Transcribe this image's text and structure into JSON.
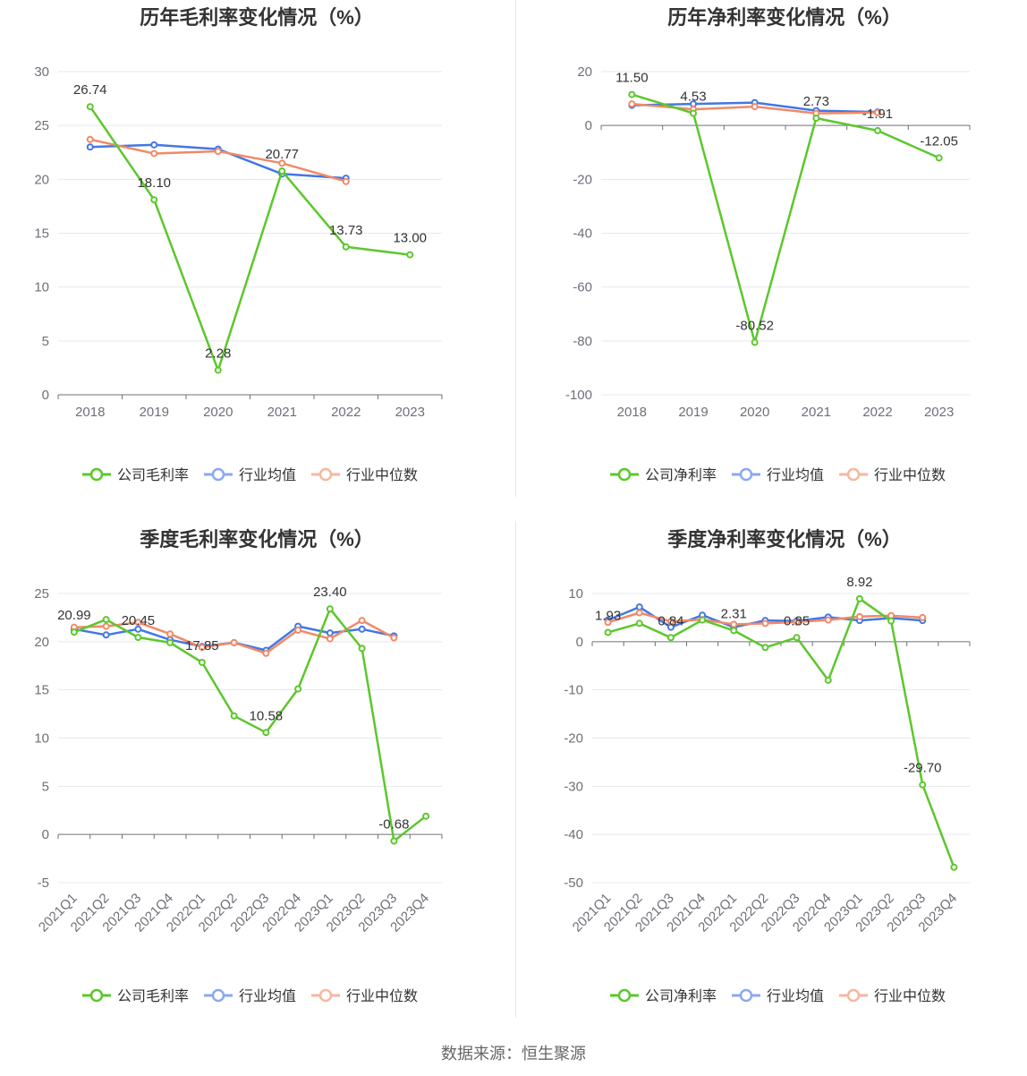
{
  "source": "数据来源：恒生聚源",
  "colors": {
    "company": "#5cc72c",
    "avg": "#4277e5",
    "median": "#f08a68",
    "avg_legend": "#8ba9ee",
    "median_legend": "#f7b6a0"
  },
  "chart_data": [
    {
      "id": "annual-gross",
      "type": "line",
      "title": "历年毛利率变化情况（%）",
      "categories": [
        "2018",
        "2019",
        "2020",
        "2021",
        "2022",
        "2023"
      ],
      "ylim": [
        0,
        30
      ],
      "yticks": [
        0,
        5,
        10,
        15,
        20,
        25,
        30
      ],
      "legend": [
        "公司毛利率",
        "行业均值",
        "行业中位数"
      ],
      "series": [
        {
          "name": "公司毛利率",
          "values": [
            26.74,
            18.1,
            2.28,
            20.77,
            13.73,
            13.0
          ],
          "labels": [
            "26.74",
            "18.10",
            "2.28",
            "20.77",
            "13.73",
            "13.00"
          ]
        },
        {
          "name": "行业均值",
          "values": [
            23.0,
            23.2,
            22.8,
            20.5,
            20.1,
            null
          ]
        },
        {
          "name": "行业中位数",
          "values": [
            23.7,
            22.4,
            22.6,
            21.5,
            19.8,
            null
          ]
        }
      ]
    },
    {
      "id": "annual-net",
      "type": "line",
      "title": "历年净利率变化情况（%）",
      "categories": [
        "2018",
        "2019",
        "2020",
        "2021",
        "2022",
        "2023"
      ],
      "ylim": [
        -100,
        20
      ],
      "yticks": [
        -100,
        -80,
        -60,
        -40,
        -20,
        0,
        20
      ],
      "legend": [
        "公司净利率",
        "行业均值",
        "行业中位数"
      ],
      "series": [
        {
          "name": "公司净利率",
          "values": [
            11.5,
            4.53,
            -80.52,
            2.73,
            -1.91,
            -12.05
          ],
          "labels": [
            "11.50",
            "4.53",
            "-80.52",
            "2.73",
            "-1.91",
            "-12.05"
          ]
        },
        {
          "name": "行业均值",
          "values": [
            7.5,
            8.0,
            8.5,
            5.5,
            5.0,
            null
          ]
        },
        {
          "name": "行业中位数",
          "values": [
            8.0,
            6.0,
            7.0,
            4.5,
            4.8,
            null
          ]
        }
      ]
    },
    {
      "id": "quarterly-gross",
      "type": "line",
      "title": "季度毛利率变化情况（%）",
      "categories": [
        "2021Q1",
        "2021Q2",
        "2021Q3",
        "2021Q4",
        "2022Q1",
        "2022Q2",
        "2022Q3",
        "2022Q4",
        "2023Q1",
        "2023Q2",
        "2023Q3",
        "2023Q4"
      ],
      "ylim": [
        -5,
        25
      ],
      "yticks": [
        -5,
        0,
        5,
        10,
        15,
        20,
        25
      ],
      "legend": [
        "公司毛利率",
        "行业均值",
        "行业中位数"
      ],
      "series": [
        {
          "name": "公司毛利率",
          "values": [
            20.99,
            22.3,
            20.45,
            19.9,
            17.85,
            12.3,
            10.58,
            15.1,
            23.4,
            19.3,
            -0.68,
            1.9
          ],
          "labels": [
            "20.99",
            "",
            "20.45",
            "",
            "17.85",
            "",
            "10.58",
            "",
            "23.40",
            "",
            "-0.68",
            ""
          ]
        },
        {
          "name": "行业均值",
          "values": [
            21.3,
            20.7,
            21.3,
            20.2,
            19.5,
            19.9,
            19.1,
            21.6,
            20.9,
            21.3,
            20.6,
            null
          ]
        },
        {
          "name": "行业中位数",
          "values": [
            21.5,
            21.6,
            22.0,
            20.8,
            19.4,
            19.9,
            18.8,
            21.2,
            20.3,
            22.2,
            20.4,
            null
          ]
        }
      ]
    },
    {
      "id": "quarterly-net",
      "type": "line",
      "title": "季度净利率变化情况（%）",
      "categories": [
        "2021Q1",
        "2021Q2",
        "2021Q3",
        "2021Q4",
        "2022Q1",
        "2022Q2",
        "2022Q3",
        "2022Q4",
        "2023Q1",
        "2023Q2",
        "2023Q3",
        "2023Q4"
      ],
      "ylim": [
        -50,
        10
      ],
      "yticks": [
        -50,
        -40,
        -30,
        -20,
        -10,
        0,
        10
      ],
      "legend": [
        "公司净利率",
        "行业均值",
        "行业中位数"
      ],
      "series": [
        {
          "name": "公司净利率",
          "values": [
            1.93,
            3.8,
            0.84,
            4.5,
            2.31,
            -1.2,
            0.85,
            -8.0,
            8.92,
            4.3,
            -29.7,
            -46.8
          ],
          "labels": [
            "1.93",
            "",
            "0.84",
            "",
            "2.31",
            "",
            "0.85",
            "",
            "8.92",
            "",
            "-29.70",
            ""
          ]
        },
        {
          "name": "行业均值",
          "values": [
            4.5,
            7.2,
            3.0,
            5.5,
            3.0,
            4.4,
            4.3,
            5.1,
            4.4,
            4.9,
            4.4,
            null
          ]
        },
        {
          "name": "行业中位数",
          "values": [
            4.0,
            6.0,
            4.2,
            4.6,
            3.6,
            3.8,
            4.1,
            4.5,
            5.2,
            5.4,
            5.0,
            null
          ]
        }
      ]
    }
  ]
}
